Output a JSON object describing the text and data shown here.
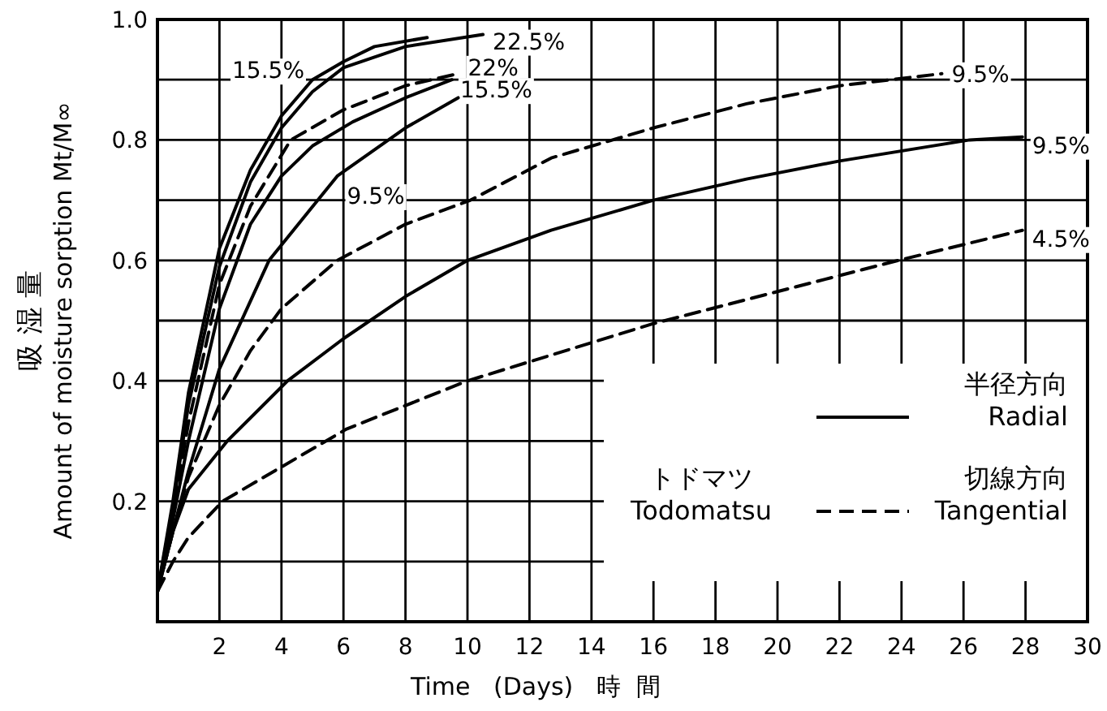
{
  "chart_data": {
    "type": "line",
    "xlabel": "Time   (Days)   時  間",
    "ylabel": "吸 湿 量\nAmount of moisture sorption Mt/M∞",
    "xlim": [
      0,
      30
    ],
    "ylim": [
      0,
      1
    ],
    "xticks": [
      2,
      4,
      6,
      8,
      10,
      12,
      14,
      16,
      18,
      20,
      22,
      24,
      26,
      28,
      30
    ],
    "yticks": [
      {
        "value": 0.1,
        "label": null
      },
      0.2,
      {
        "value": 0.3,
        "label": null
      },
      0.4,
      {
        "value": 0.5,
        "label": null
      },
      0.6,
      {
        "value": 0.7,
        "label": null
      },
      0.8,
      {
        "value": 0.9,
        "label": null
      },
      {
        "value": 1,
        "label": "1.0"
      }
    ],
    "grid": true,
    "annotations": [
      "半径方向\nRadial",
      "切線方向\nTangential",
      "トドマツ\nTodomatsu"
    ],
    "series": [
      {
        "name": "15.5%",
        "color": "#000000",
        "line_style": "solid",
        "x": [
          0,
          0.5,
          1,
          2,
          3,
          4,
          5,
          6,
          7,
          8.7
        ],
        "values": [
          0.05,
          0.2,
          0.38,
          0.62,
          0.75,
          0.84,
          0.9,
          0.93,
          0.955,
          0.97
        ]
      },
      {
        "name": "22.5%",
        "color": "#000000",
        "line_style": "solid",
        "x": [
          0,
          0.5,
          1,
          2,
          3,
          4,
          5,
          6,
          8,
          10.5
        ],
        "values": [
          0.05,
          0.19,
          0.36,
          0.59,
          0.73,
          0.82,
          0.88,
          0.92,
          0.955,
          0.975
        ]
      },
      {
        "name": "22%",
        "color": "#000000",
        "line_style": "dashed",
        "x": [
          0,
          0.5,
          1,
          2,
          3,
          4.3,
          6,
          8,
          9.7
        ],
        "values": [
          0.05,
          0.18,
          0.33,
          0.56,
          0.69,
          0.8,
          0.85,
          0.89,
          0.91
        ]
      },
      {
        "name": "15.5%",
        "color": "#000000",
        "line_style": "solid",
        "x": [
          0,
          0.5,
          1,
          2,
          3,
          4,
          5,
          6.3,
          8,
          9.5
        ],
        "values": [
          0.05,
          0.17,
          0.3,
          0.52,
          0.66,
          0.74,
          0.79,
          0.83,
          0.87,
          0.9
        ]
      },
      {
        "name": "9.5%",
        "color": "#000000",
        "line_style": "solid",
        "x": [
          0,
          0.5,
          1,
          2,
          3.6,
          5.8,
          8,
          9.7
        ],
        "values": [
          0.05,
          0.15,
          0.25,
          0.42,
          0.6,
          0.74,
          0.82,
          0.87
        ]
      },
      {
        "name": "9.5%",
        "color": "#000000",
        "line_style": "dashed",
        "x": [
          0,
          0.5,
          1,
          2,
          3,
          4,
          5.8,
          8,
          10.1,
          12.7,
          16,
          19,
          22,
          25.3
        ],
        "values": [
          0.05,
          0.15,
          0.24,
          0.36,
          0.45,
          0.52,
          0.6,
          0.66,
          0.7,
          0.77,
          0.82,
          0.86,
          0.89,
          0.91
        ]
      },
      {
        "name": "9.5%",
        "color": "#000000",
        "line_style": "solid",
        "x": [
          0,
          0.5,
          1,
          2.25,
          4.2,
          6,
          8,
          10,
          12.7,
          16,
          19,
          22,
          26.2,
          27.9
        ],
        "values": [
          0.05,
          0.15,
          0.22,
          0.3,
          0.4,
          0.47,
          0.54,
          0.6,
          0.65,
          0.7,
          0.735,
          0.765,
          0.8,
          0.805
        ]
      },
      {
        "name": "4.5%",
        "color": "#000000",
        "line_style": "dashed",
        "x": [
          0,
          0.5,
          1,
          2.1,
          6.1,
          10,
          16,
          23.9,
          27.9
        ],
        "values": [
          0.05,
          0.1,
          0.14,
          0.2,
          0.32,
          0.4,
          0.495,
          0.6,
          0.65
        ]
      }
    ]
  }
}
